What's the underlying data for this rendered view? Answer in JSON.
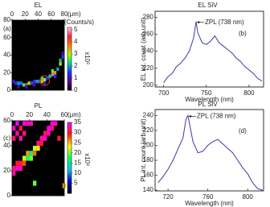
{
  "chart_data": [
    {
      "type": "heatmap",
      "title": "EL",
      "panel_label": "(a)",
      "x_label": "(μm)",
      "xlim": [
        0,
        80
      ],
      "xticks": [
        0,
        20,
        40,
        60,
        80
      ],
      "ylim": [
        0,
        80
      ],
      "yticks": [
        0,
        20,
        40,
        60,
        80
      ],
      "colorbar_label": "(Counts/s)",
      "colorbar_multiplier": "x10³",
      "clim": [
        0,
        5.2
      ],
      "cticks": [
        0,
        1,
        2,
        3,
        4,
        5
      ],
      "colormap": [
        "#000000",
        "#5a0090",
        "#2030ff",
        "#00d0a0",
        "#a0ff00",
        "#ff8000",
        "#ff2040",
        "#ffd0e0"
      ],
      "x": [
        2,
        6,
        10,
        14,
        18,
        22,
        26,
        30,
        34,
        38,
        42,
        46,
        50,
        54,
        58,
        62,
        66,
        70,
        74,
        78,
        10,
        22,
        34,
        46,
        50,
        62,
        66,
        74,
        78
      ],
      "y": [
        10,
        8,
        8,
        8,
        6,
        6,
        8,
        8,
        10,
        10,
        10,
        10,
        12,
        14,
        16,
        18,
        20,
        24,
        30,
        38,
        4,
        4,
        6,
        14,
        8,
        22,
        16,
        34,
        42
      ],
      "values": [
        1.2,
        1.5,
        2.0,
        1.8,
        2.5,
        4.0,
        3.2,
        1.6,
        1.4,
        2.0,
        1.8,
        3.5,
        2.8,
        1.5,
        2.2,
        4.8,
        3.6,
        2.0,
        3.0,
        1.6,
        0.8,
        1.0,
        0.9,
        2.4,
        1.2,
        2.6,
        1.4,
        2.2,
        1.0
      ]
    },
    {
      "type": "line",
      "title": "EL SiV",
      "panel_label": "(b)",
      "x_label": "Wavelength (nm)",
      "y_label": "EL int. count (arb.unit)",
      "annotation": "ZPL (738 nm)",
      "color": "#3a3aa0",
      "xlim": [
        690,
        817
      ],
      "xticks": [
        700,
        750,
        800
      ],
      "ylim": [
        198,
        287
      ],
      "yticks": [
        200,
        220,
        240,
        260,
        280
      ],
      "x": [
        700,
        705,
        710,
        715,
        720,
        725,
        730,
        735,
        738,
        740,
        745,
        750,
        755,
        760,
        765,
        770,
        775,
        780,
        785,
        790,
        795,
        800,
        805,
        810,
        815
      ],
      "values": [
        203,
        210,
        214,
        222,
        226,
        232,
        240,
        255,
        275,
        262,
        250,
        248,
        252,
        258,
        250,
        246,
        242,
        238,
        232,
        228,
        222,
        218,
        214,
        208,
        205
      ]
    },
    {
      "type": "heatmap",
      "title": "PL",
      "panel_label": "(c)",
      "x_label": "(μm)",
      "xlim": [
        0,
        60
      ],
      "xticks": [
        0,
        20,
        40,
        60
      ],
      "ylim": [
        0,
        60
      ],
      "yticks": [
        0,
        20,
        40,
        60
      ],
      "colorbar_multiplier": "x10³",
      "clim": [
        0,
        35
      ],
      "cticks": [
        5,
        10,
        15,
        20,
        25,
        30,
        35
      ],
      "colormap": [
        "#000000",
        "#0000c0",
        "#00c0ff",
        "#00ff60",
        "#ffff00",
        "#ff2000",
        "#ff00ff"
      ],
      "x": [
        2,
        2,
        6,
        6,
        10,
        10,
        14,
        14,
        18,
        22,
        2,
        2,
        6,
        6,
        10,
        10,
        14,
        14,
        18,
        18,
        22,
        22,
        26,
        26,
        30,
        30,
        34,
        34,
        38,
        38,
        42,
        42,
        46,
        46,
        50,
        60,
        54,
        26
      ],
      "y": [
        54,
        46,
        50,
        58,
        54,
        46,
        58,
        50,
        58,
        58,
        18,
        22,
        22,
        26,
        26,
        22,
        30,
        26,
        30,
        34,
        34,
        30,
        38,
        34,
        38,
        42,
        42,
        46,
        46,
        50,
        50,
        54,
        54,
        58,
        58,
        8,
        46,
        10
      ],
      "values": [
        34,
        32,
        33,
        35,
        31,
        33,
        34,
        32,
        33,
        34,
        33,
        32,
        34,
        30,
        31,
        33,
        22,
        28,
        18,
        26,
        16,
        20,
        22,
        27,
        24,
        32,
        30,
        33,
        34,
        31,
        33,
        35,
        32,
        34,
        33,
        25,
        30,
        20
      ]
    },
    {
      "type": "line",
      "title": "PL SiV",
      "panel_label": "(d)",
      "x_label": "Wavelength (nm)",
      "y_label": "PL int. count (arb.unit)",
      "annotation": "ZPL (738 nm)",
      "color": "#3a3aa0",
      "xlim": [
        707,
        816
      ],
      "xticks": [
        720,
        760,
        800
      ],
      "ylim": [
        139,
        248
      ],
      "yticks": [
        140,
        160,
        180,
        200,
        220,
        240
      ],
      "x": [
        710,
        715,
        720,
        725,
        730,
        735,
        738,
        740,
        745,
        750,
        755,
        760,
        765,
        770,
        775,
        780,
        785,
        790,
        795,
        800,
        805,
        810,
        815
      ],
      "values": [
        150,
        158,
        168,
        180,
        195,
        210,
        235,
        240,
        205,
        190,
        192,
        200,
        205,
        208,
        202,
        196,
        190,
        180,
        170,
        162,
        150,
        142,
        140
      ]
    }
  ]
}
